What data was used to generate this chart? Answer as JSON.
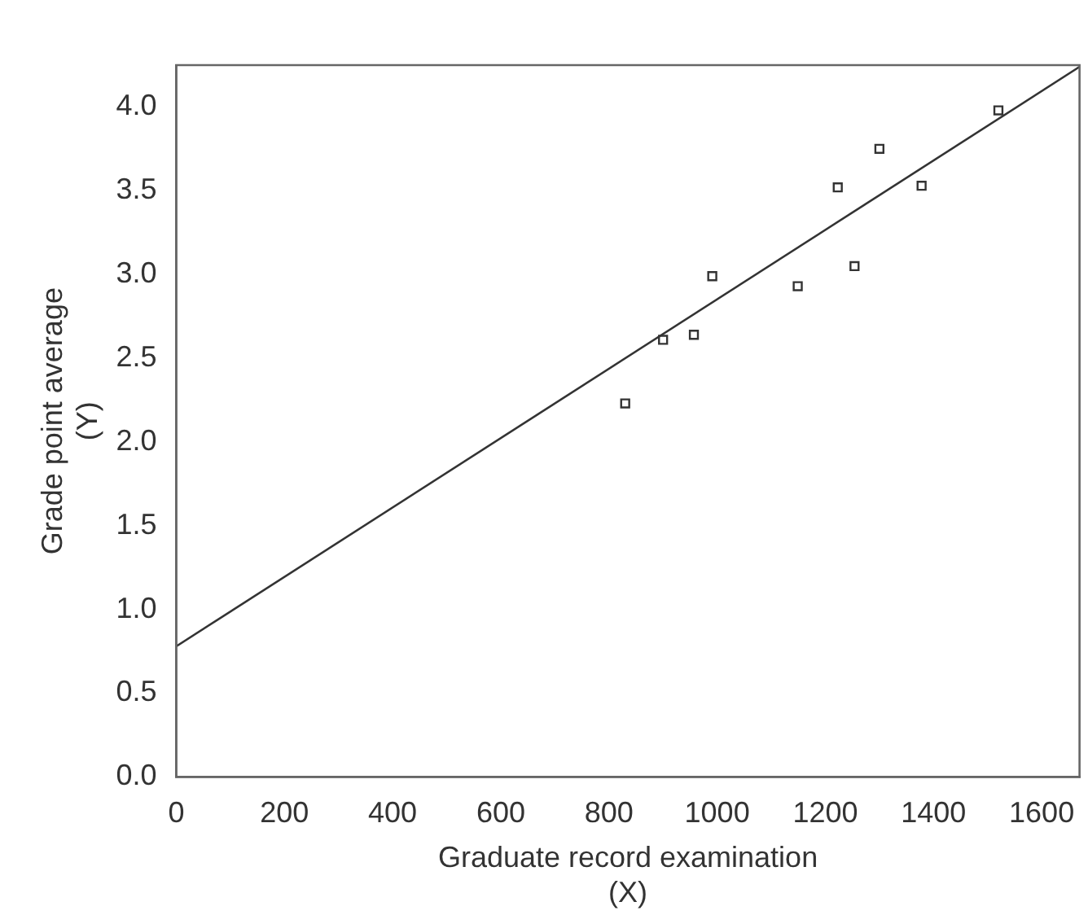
{
  "chart_data": {
    "type": "scatter",
    "xlabel": "Graduate record examination\n(X)",
    "ylabel": "Grade point average\n(Y)",
    "x": [
      830,
      900,
      957,
      991,
      1149,
      1254,
      1223,
      1300,
      1378,
      1520
    ],
    "series": [
      {
        "type": "scatter",
        "color": "#333333",
        "marker": "square",
        "values": [
          2.23,
          2.61,
          2.64,
          2.99,
          2.93,
          3.05,
          3.52,
          3.75,
          3.53,
          3.98
        ]
      },
      {
        "type": "line",
        "color": "#333333",
        "marker": "none",
        "x": [
          0,
          1670
        ],
        "values": [
          0.78,
          4.24
        ]
      }
    ],
    "xlim": [
      0,
      1670
    ],
    "xticks": [
      0,
      200,
      400,
      600,
      800,
      1000,
      1200,
      1400,
      1600
    ],
    "ylim": [
      0,
      4.25
    ],
    "yticks": [
      {
        "value": 0,
        "label": "0.0"
      },
      {
        "value": 0.5,
        "label": "0.5"
      },
      {
        "value": 1,
        "label": "1.0"
      },
      {
        "value": 1.5,
        "label": "1.5"
      },
      {
        "value": 2,
        "label": "2.0"
      },
      {
        "value": 2.5,
        "label": "2.5"
      },
      {
        "value": 3,
        "label": "3.0"
      },
      {
        "value": 3.5,
        "label": "3.5"
      },
      {
        "value": 4,
        "label": "4.0"
      }
    ],
    "grid": false,
    "legend": false
  }
}
